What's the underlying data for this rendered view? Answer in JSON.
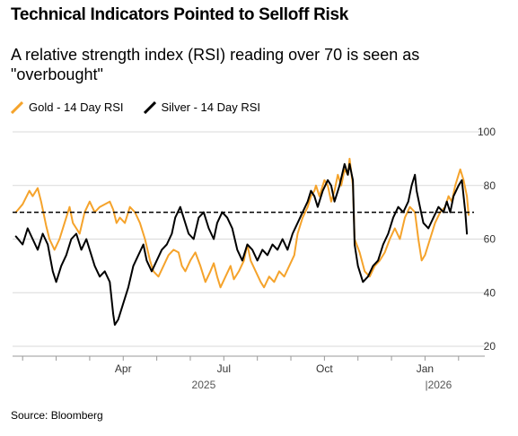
{
  "chart_data": {
    "type": "line",
    "title": "Technical Indicators Pointed to Selloff Risk",
    "subtitle": "A relative strength index (RSI) reading over 70 is seen as \"overbought\"",
    "source": "Source: Bloomberg",
    "ylim": [
      20,
      100
    ],
    "y_ticks": [
      20,
      40,
      60,
      80,
      100
    ],
    "xlim": [
      0,
      13.6
    ],
    "x_ticks": [
      {
        "x": 3,
        "label": "Apr"
      },
      {
        "x": 6,
        "label": "Jul"
      },
      {
        "x": 9,
        "label": "Oct"
      },
      {
        "x": 12,
        "label": "Jan"
      }
    ],
    "year_labels": [
      {
        "x": 5.4,
        "label": "2025"
      },
      {
        "x": 12.4,
        "label": "|2026"
      }
    ],
    "threshold": 70,
    "grid": true,
    "legend_position": "top-left",
    "series": [
      {
        "name": "Gold - 14 Day RSI",
        "color": "#f5a32b",
        "points": [
          [
            0.1,
            70
          ],
          [
            0.3,
            73
          ],
          [
            0.5,
            78
          ],
          [
            0.6,
            76
          ],
          [
            0.75,
            79
          ],
          [
            0.85,
            74
          ],
          [
            1.0,
            65
          ],
          [
            1.1,
            60
          ],
          [
            1.25,
            56
          ],
          [
            1.4,
            60
          ],
          [
            1.55,
            66
          ],
          [
            1.7,
            72
          ],
          [
            1.8,
            66
          ],
          [
            1.9,
            64
          ],
          [
            2.0,
            62
          ],
          [
            2.15,
            70
          ],
          [
            2.3,
            74
          ],
          [
            2.45,
            70
          ],
          [
            2.6,
            72
          ],
          [
            2.75,
            73
          ],
          [
            2.9,
            74
          ],
          [
            3.0,
            71
          ],
          [
            3.1,
            66
          ],
          [
            3.2,
            68
          ],
          [
            3.35,
            66
          ],
          [
            3.5,
            72
          ],
          [
            3.65,
            70
          ],
          [
            3.8,
            66
          ],
          [
            3.95,
            60
          ],
          [
            4.1,
            52
          ],
          [
            4.2,
            48
          ],
          [
            4.35,
            46
          ],
          [
            4.5,
            50
          ],
          [
            4.65,
            54
          ],
          [
            4.8,
            56
          ],
          [
            4.95,
            55
          ],
          [
            5.05,
            50
          ],
          [
            5.15,
            48
          ],
          [
            5.3,
            52
          ],
          [
            5.45,
            55
          ],
          [
            5.6,
            50
          ],
          [
            5.75,
            44
          ],
          [
            5.9,
            48
          ],
          [
            6.0,
            51
          ],
          [
            6.1,
            46
          ],
          [
            6.2,
            42
          ],
          [
            6.35,
            46
          ],
          [
            6.5,
            50
          ],
          [
            6.6,
            45
          ],
          [
            6.75,
            48
          ],
          [
            6.9,
            52
          ],
          [
            7.0,
            58
          ],
          [
            7.1,
            52
          ],
          [
            7.25,
            48
          ],
          [
            7.4,
            44
          ],
          [
            7.5,
            42
          ],
          [
            7.65,
            46
          ],
          [
            7.8,
            44
          ],
          [
            7.95,
            48
          ],
          [
            8.1,
            46
          ],
          [
            8.25,
            50
          ],
          [
            8.4,
            54
          ],
          [
            8.5,
            62
          ],
          [
            8.65,
            68
          ],
          [
            8.8,
            72
          ],
          [
            8.9,
            76
          ],
          [
            9.0,
            78
          ],
          [
            9.05,
            80
          ],
          [
            9.15,
            76
          ],
          [
            9.3,
            82
          ],
          [
            9.4,
            80
          ],
          [
            9.5,
            74
          ],
          [
            9.6,
            78
          ],
          [
            9.7,
            84
          ],
          [
            9.8,
            80
          ],
          [
            9.9,
            86
          ],
          [
            10.0,
            84
          ],
          [
            10.05,
            90
          ],
          [
            10.15,
            80
          ],
          [
            10.2,
            60
          ],
          [
            10.35,
            55
          ],
          [
            10.5,
            48
          ],
          [
            10.65,
            46
          ],
          [
            10.8,
            50
          ],
          [
            10.95,
            52
          ],
          [
            11.1,
            55
          ],
          [
            11.25,
            60
          ],
          [
            11.4,
            64
          ],
          [
            11.55,
            60
          ],
          [
            11.7,
            68
          ],
          [
            11.85,
            72
          ],
          [
            12.0,
            70
          ],
          [
            12.1,
            60
          ],
          [
            12.2,
            52
          ],
          [
            12.3,
            54
          ],
          [
            12.45,
            60
          ],
          [
            12.6,
            66
          ],
          [
            12.75,
            70
          ],
          [
            12.9,
            72
          ],
          [
            13.0,
            76
          ],
          [
            13.1,
            74
          ],
          [
            13.2,
            80
          ],
          [
            13.3,
            84
          ],
          [
            13.35,
            86
          ],
          [
            13.45,
            82
          ],
          [
            13.55,
            76
          ],
          [
            13.6,
            69
          ]
        ]
      },
      {
        "name": "Silver - 14 Day RSI",
        "color": "#000000",
        "points": [
          [
            0.1,
            61
          ],
          [
            0.3,
            58
          ],
          [
            0.45,
            64
          ],
          [
            0.6,
            60
          ],
          [
            0.75,
            56
          ],
          [
            0.9,
            62
          ],
          [
            1.05,
            58
          ],
          [
            1.2,
            48
          ],
          [
            1.3,
            44
          ],
          [
            1.45,
            50
          ],
          [
            1.6,
            54
          ],
          [
            1.75,
            60
          ],
          [
            1.9,
            62
          ],
          [
            2.05,
            56
          ],
          [
            2.2,
            60
          ],
          [
            2.3,
            56
          ],
          [
            2.45,
            50
          ],
          [
            2.6,
            46
          ],
          [
            2.75,
            48
          ],
          [
            2.9,
            44
          ],
          [
            3.0,
            32
          ],
          [
            3.05,
            28
          ],
          [
            3.15,
            30
          ],
          [
            3.3,
            36
          ],
          [
            3.45,
            42
          ],
          [
            3.6,
            50
          ],
          [
            3.75,
            54
          ],
          [
            3.9,
            58
          ],
          [
            4.0,
            52
          ],
          [
            4.15,
            48
          ],
          [
            4.3,
            52
          ],
          [
            4.45,
            56
          ],
          [
            4.6,
            58
          ],
          [
            4.75,
            62
          ],
          [
            4.85,
            68
          ],
          [
            5.0,
            72
          ],
          [
            5.1,
            68
          ],
          [
            5.25,
            62
          ],
          [
            5.4,
            60
          ],
          [
            5.55,
            68
          ],
          [
            5.7,
            70
          ],
          [
            5.85,
            64
          ],
          [
            6.0,
            60
          ],
          [
            6.1,
            66
          ],
          [
            6.25,
            70
          ],
          [
            6.4,
            68
          ],
          [
            6.55,
            64
          ],
          [
            6.7,
            56
          ],
          [
            6.85,
            52
          ],
          [
            7.0,
            58
          ],
          [
            7.15,
            56
          ],
          [
            7.3,
            52
          ],
          [
            7.45,
            56
          ],
          [
            7.6,
            54
          ],
          [
            7.75,
            58
          ],
          [
            7.9,
            56
          ],
          [
            8.05,
            60
          ],
          [
            8.2,
            56
          ],
          [
            8.35,
            62
          ],
          [
            8.5,
            66
          ],
          [
            8.65,
            70
          ],
          [
            8.8,
            74
          ],
          [
            8.9,
            78
          ],
          [
            9.0,
            76
          ],
          [
            9.1,
            72
          ],
          [
            9.25,
            78
          ],
          [
            9.4,
            82
          ],
          [
            9.5,
            80
          ],
          [
            9.6,
            74
          ],
          [
            9.75,
            80
          ],
          [
            9.9,
            88
          ],
          [
            10.0,
            84
          ],
          [
            10.05,
            88
          ],
          [
            10.15,
            82
          ],
          [
            10.2,
            58
          ],
          [
            10.3,
            50
          ],
          [
            10.45,
            44
          ],
          [
            10.6,
            46
          ],
          [
            10.75,
            50
          ],
          [
            10.9,
            52
          ],
          [
            11.05,
            58
          ],
          [
            11.2,
            62
          ],
          [
            11.35,
            68
          ],
          [
            11.5,
            72
          ],
          [
            11.65,
            70
          ],
          [
            11.8,
            74
          ],
          [
            11.9,
            80
          ],
          [
            12.0,
            84
          ],
          [
            12.05,
            78
          ],
          [
            12.15,
            72
          ],
          [
            12.25,
            66
          ],
          [
            12.4,
            64
          ],
          [
            12.55,
            68
          ],
          [
            12.7,
            72
          ],
          [
            12.85,
            70
          ],
          [
            12.95,
            74
          ],
          [
            13.05,
            70
          ],
          [
            13.15,
            76
          ],
          [
            13.3,
            80
          ],
          [
            13.4,
            82
          ],
          [
            13.5,
            70
          ],
          [
            13.55,
            62
          ]
        ]
      }
    ]
  },
  "colors": {
    "gold": "#f5a32b",
    "silver": "#000000",
    "grid": "#d9d9d9",
    "axis": "#999999"
  }
}
